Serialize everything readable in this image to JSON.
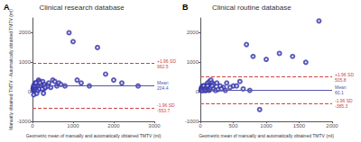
{
  "chart_data": [
    {
      "type": "scatter",
      "title": "Clinical research database",
      "xlabel": "Geometric mean of manually and automatically obtained TMTV (ml)",
      "ylabel": "Manually obtained TMTV - Automatically obtained TMTV (ml)",
      "x": [
        15,
        20,
        25,
        30,
        35,
        40,
        50,
        60,
        70,
        80,
        90,
        100,
        110,
        120,
        130,
        150,
        160,
        180,
        200,
        220,
        250,
        280,
        300,
        350,
        400,
        450,
        500,
        550,
        600,
        650,
        700,
        800,
        900,
        1000,
        1100,
        1200,
        1400,
        1600,
        1800,
        2000,
        2200,
        2600,
        30,
        45,
        55,
        65,
        75,
        85,
        95,
        105,
        115,
        125,
        135,
        155,
        165,
        175,
        185,
        210,
        240,
        270,
        320,
        380
      ],
      "values": [
        100,
        150,
        50,
        200,
        80,
        120,
        250,
        300,
        180,
        220,
        160,
        140,
        90,
        280,
        320,
        400,
        350,
        280,
        300,
        200,
        350,
        100,
        250,
        200,
        300,
        150,
        400,
        350,
        200,
        300,
        250,
        200,
        2000,
        1700,
        400,
        300,
        200,
        1500,
        600,
        400,
        300,
        200,
        -100,
        100,
        150,
        200,
        50,
        300,
        100,
        -50,
        200,
        100,
        50,
        200,
        150,
        100,
        300,
        200,
        100,
        -50,
        150,
        200
      ],
      "color": "#3333aa",
      "marker": "open_circle",
      "xlim": [
        0,
        3000
      ],
      "ylim": [
        -1000,
        2500
      ],
      "xticks": [
        0,
        1000,
        2000,
        3000
      ],
      "yticks": [
        -1000,
        0,
        1000,
        2000
      ],
      "grid": false,
      "annotations": [
        {
          "text": "A"
        },
        {
          "text": "+1.96 SD\n962.5",
          "y": 962.5,
          "color": "#cc4444",
          "line_style": "dashed"
        },
        {
          "text": "Mean\n204.4",
          "y": 204.4,
          "color": "#5555aa",
          "line_style": "solid"
        },
        {
          "text": "-1.96 SD\n-553.7",
          "y": -553.7,
          "color": "#cc4444",
          "line_style": "dashed"
        }
      ]
    },
    {
      "type": "scatter",
      "title": "Clinical routine database",
      "xlabel": "Geometric mean of manually and automatically obtained TMTV (ml)",
      "x": [
        10,
        15,
        20,
        25,
        30,
        35,
        40,
        45,
        50,
        55,
        60,
        65,
        70,
        75,
        80,
        90,
        100,
        110,
        120,
        140,
        160,
        180,
        200,
        250,
        300,
        350,
        400,
        500,
        600,
        700,
        800,
        900,
        1000,
        1200,
        1400,
        1600,
        1800,
        20,
        30,
        40,
        50,
        60,
        70,
        80,
        90,
        100,
        110,
        120,
        130,
        140,
        150,
        160,
        180,
        200,
        230,
        270,
        320,
        380,
        450,
        550,
        650,
        750
      ],
      "values": [
        50,
        100,
        150,
        80,
        120,
        200,
        50,
        180,
        100,
        150,
        200,
        80,
        100,
        50,
        150,
        200,
        250,
        300,
        200,
        350,
        400,
        300,
        250,
        300,
        200,
        150,
        300,
        200,
        350,
        1600,
        1200,
        -600,
        1100,
        1300,
        1200,
        1000,
        2400,
        100,
        50,
        150,
        200,
        100,
        80,
        50,
        100,
        150,
        200,
        100,
        50,
        80,
        100,
        150,
        200,
        100,
        50,
        80,
        100,
        50,
        150,
        200,
        100,
        50
      ],
      "color": "#3333aa",
      "marker": "open_circle",
      "xlim": [
        0,
        2000
      ],
      "ylim": [
        -1000,
        2500
      ],
      "xticks": [
        0,
        500,
        1000,
        1500,
        2000
      ],
      "yticks": [
        -1000,
        0,
        1000,
        2000
      ],
      "grid": false,
      "annotations": [
        {
          "text": "B"
        },
        {
          "text": "+1.96 SD\n505.8",
          "y": 505.8,
          "color": "#cc4444",
          "line_style": "dashed"
        },
        {
          "text": "Mean\n60.1",
          "y": 60.1,
          "color": "#5555aa",
          "line_style": "solid"
        },
        {
          "text": "-1.96 SD\n-385.3",
          "y": -385.3,
          "color": "#cc4444",
          "line_style": "dashed"
        }
      ]
    }
  ]
}
